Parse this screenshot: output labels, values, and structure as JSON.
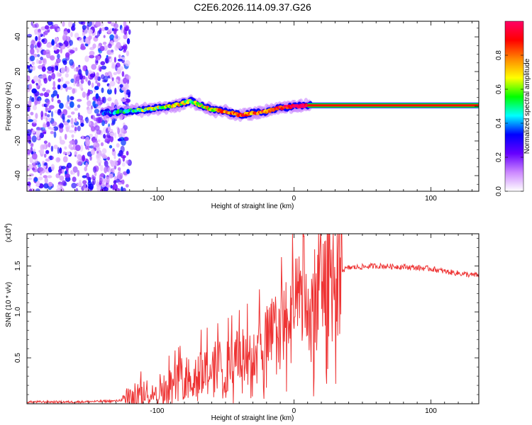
{
  "title": "C2E6.2026.114.09.37.G26",
  "chart_data": [
    {
      "type": "heatmap",
      "title": "C2E6.2026.114.09.37.G26",
      "xlabel": "Height of straight line (km)",
      "ylabel": "Frequency (Hz)",
      "xlim": [
        -195,
        135
      ],
      "ylim": [
        -49,
        49
      ],
      "xticks": [
        -100,
        0,
        100
      ],
      "yticks": [
        -40,
        -20,
        0,
        20,
        40
      ],
      "noise_region_x": [
        -195,
        -125
      ],
      "ridge": {
        "x": [
          -140,
          -125,
          -110,
          -100,
          -90,
          -80,
          -75,
          -70,
          -60,
          -50,
          -40,
          -30,
          -20,
          -10,
          0,
          10,
          135
        ],
        "freq": [
          -4,
          -3,
          -2,
          -1,
          0,
          2,
          3,
          1,
          -2,
          -3,
          -5,
          -4,
          -3,
          -1,
          0,
          0.5,
          0.5
        ],
        "amplitude": [
          0.25,
          0.45,
          0.55,
          0.6,
          0.7,
          0.65,
          0.6,
          0.65,
          0.7,
          0.75,
          0.85,
          0.8,
          0.85,
          0.9,
          0.95,
          1.0,
          1.0
        ]
      },
      "colorbar": {
        "label": "Normalized spectral amplitude",
        "ticks": [
          0.0,
          0.2,
          0.4,
          0.6,
          0.8
        ],
        "range": [
          0,
          1
        ],
        "colors": [
          "#ffffff",
          "#cc88ff",
          "#6600ff",
          "#0000ff",
          "#00ffff",
          "#00ff00",
          "#ffff00",
          "#ff8800",
          "#ff0000",
          "#ff0066"
        ]
      }
    },
    {
      "type": "line",
      "xlabel": "Height of straight line (km)",
      "ylabel": "SNR (10 * v/v)",
      "scale_label": "(x10",
      "scale_exponent": "4",
      "scale_suffix": ")",
      "xlim": [
        -195,
        135
      ],
      "ylim": [
        0,
        1.85
      ],
      "xticks": [
        -100,
        0,
        100
      ],
      "yticks": [
        0.5,
        1.0,
        1.5
      ],
      "series": [
        {
          "name": "SNR",
          "color": "#ee3333",
          "x": [
            -195,
            -160,
            -130,
            -120,
            -110,
            -100,
            -90,
            -80,
            -70,
            -60,
            -50,
            -40,
            -30,
            -20,
            -10,
            0,
            5,
            8,
            10,
            15,
            20,
            25,
            30,
            35,
            40,
            60,
            80,
            100,
            110,
            120,
            130,
            135
          ],
          "y": [
            0.02,
            0.02,
            0.03,
            0.06,
            0.1,
            0.14,
            0.2,
            0.28,
            0.35,
            0.38,
            0.42,
            0.48,
            0.55,
            0.68,
            0.8,
            0.98,
            1.1,
            1.2,
            0.8,
            1.2,
            1.3,
            1.35,
            1.42,
            1.45,
            1.48,
            1.5,
            1.49,
            1.47,
            1.44,
            1.42,
            1.4,
            1.4
          ]
        }
      ]
    }
  ]
}
